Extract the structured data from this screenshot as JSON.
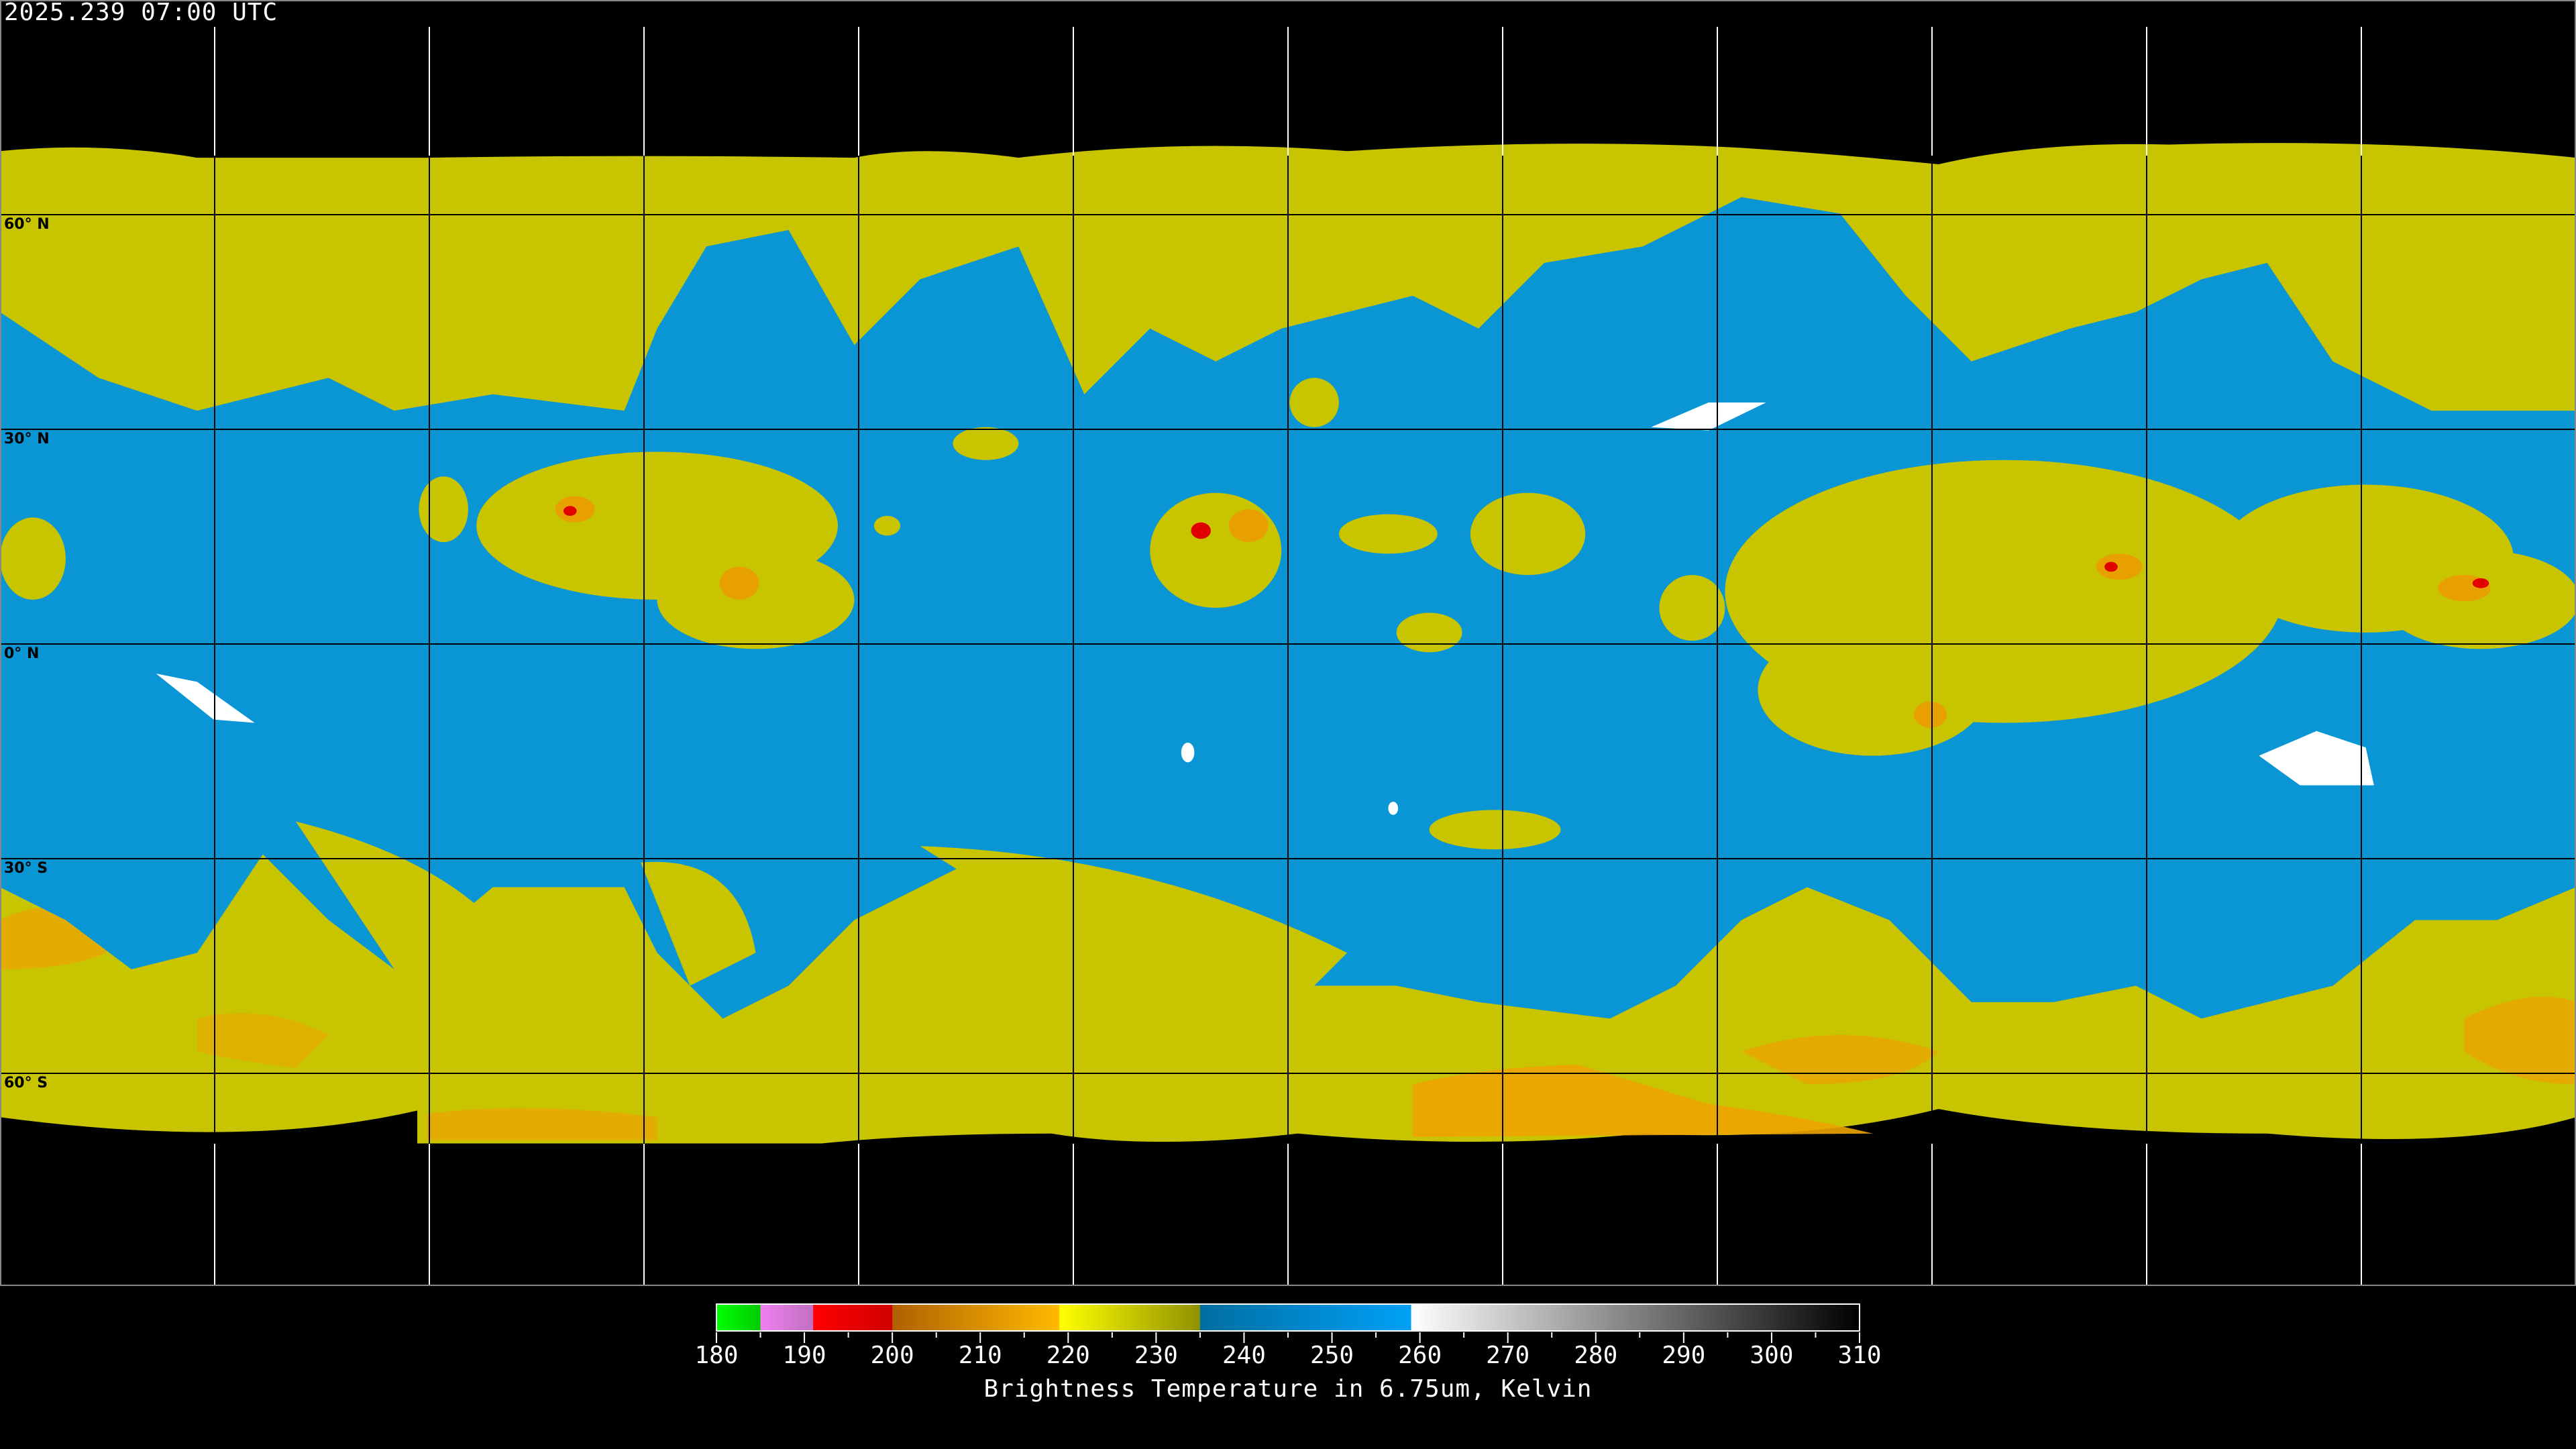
{
  "header": {
    "timestamp": "2025.239 07:00 UTC"
  },
  "map": {
    "projection": "equirectangular",
    "gridlines": "30-degree latitude/longitude grid",
    "latitude_labels": [
      "60° N",
      "30° N",
      "0° N",
      "30° S",
      "60° S"
    ],
    "colors": {
      "dry_blue": "#0a96d4",
      "moist_yellow": "#cccc00",
      "cold_orange": "#f0a400",
      "deep_red": "#e00000",
      "background": "#000000"
    }
  },
  "colorbar": {
    "title": "Brightness Temperature in 6.75um, Kelvin",
    "min": 180,
    "max": 310,
    "tick_labels": [
      "180",
      "190",
      "200",
      "210",
      "220",
      "230",
      "240",
      "250",
      "260",
      "270",
      "280",
      "290",
      "300",
      "310"
    ],
    "colormap": [
      {
        "from": 180,
        "to": 185,
        "start": "#00ff00",
        "end": "#00cc00"
      },
      {
        "from": 185,
        "to": 191,
        "start": "#f080f0",
        "end": "#c070c0"
      },
      {
        "from": 191,
        "to": 200,
        "start": "#ff0000",
        "end": "#d00000"
      },
      {
        "from": 200,
        "to": 219,
        "start": "#b06000",
        "end": "#ffbb00"
      },
      {
        "from": 219,
        "to": 235,
        "start": "#ffff00",
        "end": "#909000"
      },
      {
        "from": 235,
        "to": 259,
        "start": "#006ea0",
        "end": "#00a0f8"
      },
      {
        "from": 259,
        "to": 310,
        "start": "#ffffff",
        "end": "#000000"
      }
    ]
  }
}
